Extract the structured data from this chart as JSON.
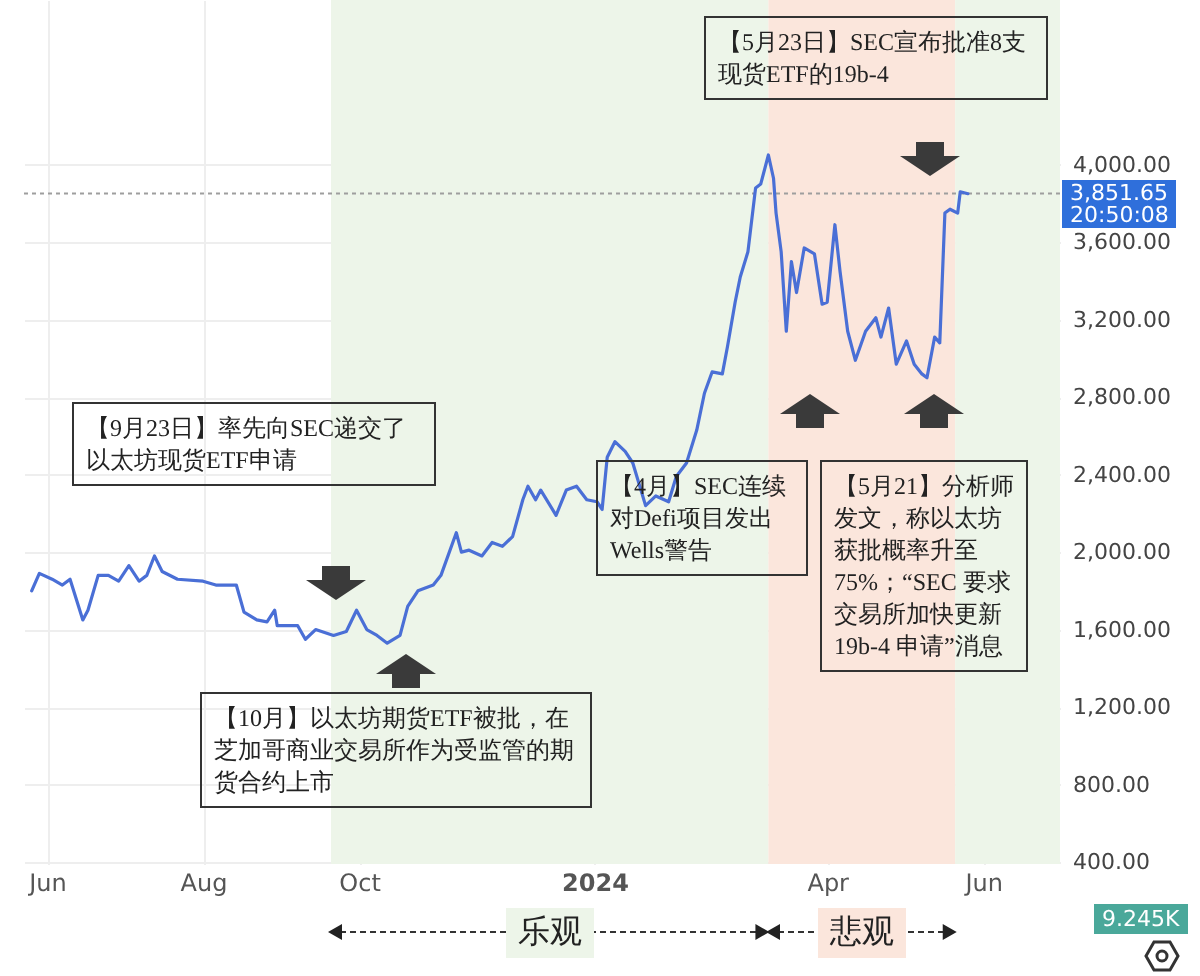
{
  "chart_data": {
    "type": "line",
    "x": [
      "2023-05-26",
      "2023-05-29",
      "2023-06-03",
      "2023-06-07",
      "2023-06-10",
      "2023-06-15",
      "2023-06-17",
      "2023-06-21",
      "2023-06-25",
      "2023-06-29",
      "2023-07-03",
      "2023-07-07",
      "2023-07-10",
      "2023-07-13",
      "2023-07-16",
      "2023-07-22",
      "2023-08-01",
      "2023-08-06",
      "2023-08-14",
      "2023-08-17",
      "2023-08-22",
      "2023-08-26",
      "2023-08-29",
      "2023-08-30",
      "2023-09-07",
      "2023-09-10",
      "2023-09-14",
      "2023-09-21",
      "2023-09-26",
      "2023-09-30",
      "2023-10-04",
      "2023-10-08",
      "2023-10-12",
      "2023-10-17",
      "2023-10-20",
      "2023-10-24",
      "2023-10-30",
      "2023-11-02",
      "2023-11-08",
      "2023-11-10",
      "2023-11-13",
      "2023-11-18",
      "2023-11-22",
      "2023-11-26",
      "2023-11-30",
      "2023-12-04",
      "2023-12-06",
      "2023-12-09",
      "2023-12-11",
      "2023-12-17",
      "2023-12-21",
      "2023-12-25",
      "2023-12-29",
      "2024-01-02",
      "2024-01-04",
      "2024-01-06",
      "2024-01-09",
      "2024-01-13",
      "2024-01-16",
      "2024-01-21",
      "2024-01-25",
      "2024-01-30",
      "2024-02-02",
      "2024-02-06",
      "2024-02-10",
      "2024-02-13",
      "2024-02-16",
      "2024-02-20",
      "2024-02-22",
      "2024-02-25",
      "2024-02-27",
      "2024-03-01",
      "2024-03-04",
      "2024-03-06",
      "2024-03-09",
      "2024-03-11",
      "2024-03-12",
      "2024-03-14",
      "2024-03-16",
      "2024-03-18",
      "2024-03-20",
      "2024-03-23",
      "2024-03-27",
      "2024-03-30",
      "2024-04-01",
      "2024-04-04",
      "2024-04-06",
      "2024-04-09",
      "2024-04-12",
      "2024-04-16",
      "2024-04-20",
      "2024-04-22",
      "2024-04-25",
      "2024-04-28",
      "2024-05-02",
      "2024-05-05",
      "2024-05-08",
      "2024-05-10",
      "2024-05-13",
      "2024-05-15",
      "2024-05-17",
      "2024-05-19",
      "2024-05-22",
      "2024-05-23",
      "2024-05-26"
    ],
    "series": [
      {
        "color": "#4a6fd6",
        "values": [
          1800,
          1890,
          1860,
          1830,
          1860,
          1650,
          1700,
          1880,
          1880,
          1850,
          1930,
          1850,
          1880,
          1980,
          1900,
          1860,
          1850,
          1830,
          1830,
          1690,
          1650,
          1640,
          1700,
          1620,
          1620,
          1550,
          1600,
          1570,
          1590,
          1700,
          1600,
          1570,
          1530,
          1570,
          1720,
          1800,
          1830,
          1880,
          2100,
          2000,
          2010,
          1980,
          2050,
          2030,
          2080,
          2270,
          2340,
          2270,
          2320,
          2190,
          2320,
          2340,
          2270,
          2260,
          2220,
          2490,
          2570,
          2520,
          2460,
          2240,
          2290,
          2260,
          2390,
          2460,
          2630,
          2820,
          2930,
          2920,
          3060,
          3290,
          3420,
          3550,
          3880,
          3900,
          4050,
          3930,
          3750,
          3550,
          3140,
          3500,
          3340,
          3570,
          3540,
          3280,
          3290,
          3690,
          3450,
          3140,
          2990,
          3140,
          3210,
          3110,
          3260,
          2970,
          3090,
          2970,
          2920,
          2900,
          3110,
          3080,
          3750,
          3770,
          3750,
          3860,
          3850
        ]
      }
    ],
    "xlim": [
      "2023-05-23",
      "2024-07-01"
    ],
    "xticks": [
      {
        "value": "2023-06-01",
        "label": "Jun"
      },
      {
        "value": "2023-08-01",
        "label": "Aug"
      },
      {
        "value": "2023-10-01",
        "label": "Oct"
      },
      {
        "value": "2024-01-01",
        "label": "2024"
      },
      {
        "value": "2024-04-01",
        "label": "Apr"
      },
      {
        "value": "2024-06-01",
        "label": "Jun"
      }
    ],
    "ylim": [
      390,
      4850
    ],
    "yticks": [
      {
        "value": 400,
        "label": "400.00"
      },
      {
        "value": 800,
        "label": "800.00"
      },
      {
        "value": 1200,
        "label": "1,200.00"
      },
      {
        "value": 1600,
        "label": "1,600.00"
      },
      {
        "value": 2000,
        "label": "2,000.00"
      },
      {
        "value": 2400,
        "label": "2,400.00"
      },
      {
        "value": 2800,
        "label": "2,800.00"
      },
      {
        "value": 3200,
        "label": "3,200.00"
      },
      {
        "value": 3600,
        "label": "3,600.00"
      },
      {
        "value": 4000,
        "label": "4,000.00"
      }
    ],
    "grid": true,
    "marker": "none",
    "line_style": "solid",
    "ref_lines": [
      {
        "axis": "y",
        "value": 3851.65,
        "label": "3,851.65\n20:50:08",
        "color": "#9e9e9e",
        "line_style": "dotted"
      }
    ],
    "bands": [
      {
        "axis": "x",
        "from": "2023-09-20",
        "to": "2024-03-09",
        "label": "乐观",
        "color": "#edf5e9"
      },
      {
        "axis": "x",
        "from": "2024-03-09",
        "to": "2024-05-21",
        "label": "悲观",
        "color": "#fbe6dc"
      },
      {
        "axis": "x",
        "from": "2024-05-21",
        "to": "2024-07-01",
        "color": "#edf5e9"
      }
    ],
    "annotations": [
      "【9月23日】率先向SEC递交了以太坊现货ETF申请",
      "【10月】以太坊期货ETF被批，在芝加哥商业交易所作为受监管的期货合约上市",
      "【4月】SEC连续对Defi项目发出Wells警告",
      "【5月23日】SEC宣布批准8支现货ETF的19b-4",
      "【5月21】分析师发文，称以太坊获批概率升至75%；“SEC 要求交易所加快更新19b-4 申请”消息",
      "9.245K"
    ]
  }
}
